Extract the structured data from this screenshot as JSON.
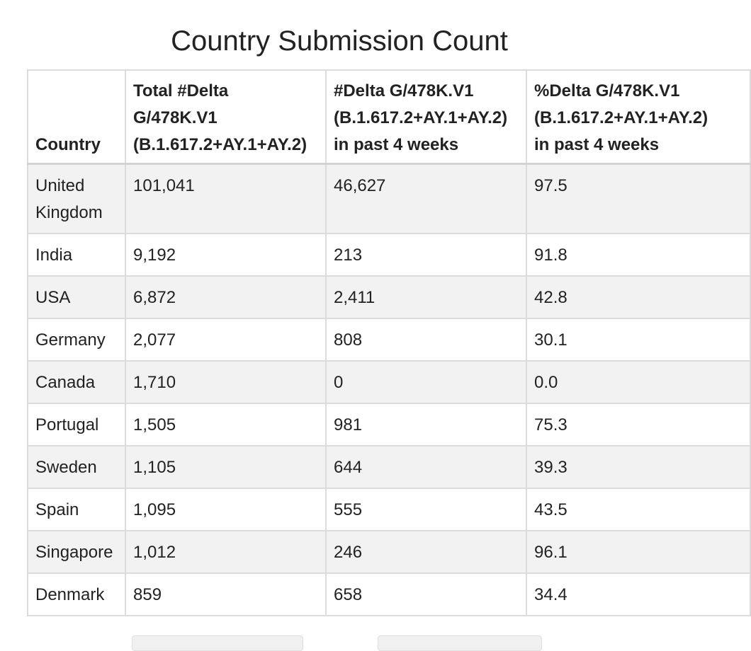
{
  "title": "Country Submission Count",
  "table": {
    "headers": [
      [
        "Country"
      ],
      [
        "Total #Delta",
        "G/478K.V1",
        "(B.1.617.2+AY.1+AY.2)"
      ],
      [
        "#Delta G/478K.V1",
        "(B.1.617.2+AY.1+AY.2)",
        "in past 4 weeks"
      ],
      [
        "%Delta G/478K.V1",
        "(B.1.617.2+AY.1+AY.2)",
        "in past 4 weeks"
      ]
    ],
    "rows": [
      {
        "country": [
          "United",
          "Kingdom"
        ],
        "total": "101,041",
        "past4": "46,627",
        "pct": "97.5"
      },
      {
        "country": [
          "India"
        ],
        "total": "9,192",
        "past4": "213",
        "pct": "91.8"
      },
      {
        "country": [
          "USA"
        ],
        "total": "6,872",
        "past4": "2,411",
        "pct": "42.8"
      },
      {
        "country": [
          "Germany"
        ],
        "total": "2,077",
        "past4": "808",
        "pct": "30.1"
      },
      {
        "country": [
          "Canada"
        ],
        "total": "1,710",
        "past4": "0",
        "pct": "0.0"
      },
      {
        "country": [
          "Portugal"
        ],
        "total": "1,505",
        "past4": "981",
        "pct": "75.3"
      },
      {
        "country": [
          "Sweden"
        ],
        "total": "1,105",
        "past4": "644",
        "pct": "39.3"
      },
      {
        "country": [
          "Spain"
        ],
        "total": "1,095",
        "past4": "555",
        "pct": "43.5"
      },
      {
        "country": [
          "Singapore"
        ],
        "total": "1,012",
        "past4": "246",
        "pct": "96.1"
      },
      {
        "country": [
          "Denmark"
        ],
        "total": "859",
        "past4": "658",
        "pct": "34.4"
      }
    ]
  }
}
